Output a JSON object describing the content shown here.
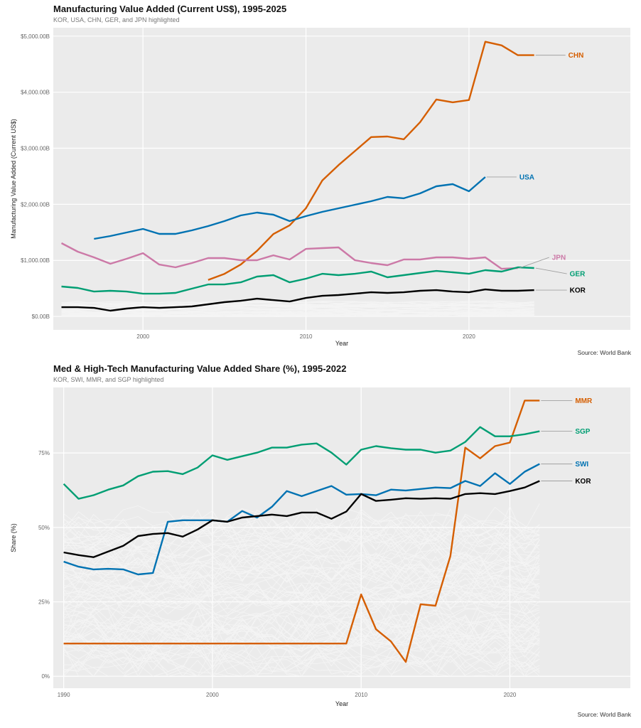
{
  "chart_data": [
    {
      "type": "line",
      "title": "Manufacturing Value Added (Current US$), 1995-2025",
      "subtitle": "KOR, USA, CHN, GER, and JPN highlighted",
      "xlabel": "Year",
      "ylabel": "Manufacturing Value Added (Current US$)",
      "caption": "Source: World Bank",
      "xlim": [
        1994.5,
        2029.9
      ],
      "ylim": [
        -240,
        5150
      ],
      "x_ticks": [
        2000,
        2010,
        2020
      ],
      "x_tick_labels": [
        "2000",
        "2010",
        "2020"
      ],
      "y_ticks": [
        0,
        1000,
        2000,
        3000,
        4000,
        5000
      ],
      "y_tick_labels": [
        "$0.00B",
        "$1,000.00B",
        "$2,000.00B",
        "$3,000.00B",
        "$4,000.00B",
        "$5,000.00B"
      ],
      "y_unit": "billions USD",
      "grid": true,
      "legend": "direct labels at line ends (right)",
      "background_series_note": "other countries drawn as faint light-gray lines near the bottom",
      "series": [
        {
          "name": "CHN",
          "color": "#D55E00",
          "x": [
            2004,
            2005,
            2006,
            2007,
            2008,
            2009,
            2010,
            2011,
            2012,
            2013,
            2014,
            2015,
            2016,
            2017,
            2018,
            2019,
            2020,
            2021,
            2022,
            2023,
            2024
          ],
          "values": [
            650,
            760,
            925,
            1170,
            1470,
            1625,
            1930,
            2425,
            2700,
            2950,
            3200,
            3210,
            3160,
            3465,
            3870,
            3820,
            3860,
            4900,
            4835,
            4660,
            4660
          ]
        },
        {
          "name": "USA",
          "color": "#0072B2",
          "x": [
            1997,
            1998,
            1999,
            2000,
            2001,
            2002,
            2003,
            2004,
            2005,
            2006,
            2007,
            2008,
            2009,
            2010,
            2011,
            2012,
            2013,
            2014,
            2015,
            2016,
            2017,
            2018,
            2019,
            2020,
            2021
          ],
          "values": [
            1383,
            1434,
            1497,
            1561,
            1472,
            1472,
            1535,
            1612,
            1700,
            1802,
            1853,
            1815,
            1700,
            1789,
            1865,
            1929,
            1992,
            2056,
            2132,
            2107,
            2195,
            2322,
            2360,
            2233,
            2487
          ]
        },
        {
          "name": "JPN",
          "color": "#CC79A7",
          "x": [
            1995,
            1996,
            1997,
            1998,
            1999,
            2000,
            2001,
            2002,
            2003,
            2004,
            2005,
            2006,
            2007,
            2008,
            2009,
            2010,
            2011,
            2012,
            2013,
            2014,
            2015,
            2016,
            2017,
            2018,
            2019,
            2020,
            2021,
            2022,
            2023
          ],
          "values": [
            1307,
            1155,
            1053,
            939,
            1028,
            1129,
            926,
            876,
            952,
            1041,
            1041,
            1003,
            1003,
            1091,
            1015,
            1205,
            1218,
            1231,
            1003,
            952,
            914,
            1015,
            1015,
            1053,
            1053,
            1028,
            1053,
            850,
            863
          ]
        },
        {
          "name": "GER",
          "color": "#009E73",
          "x": [
            1995,
            1996,
            1997,
            1998,
            1999,
            2000,
            2001,
            2002,
            2003,
            2004,
            2005,
            2006,
            2007,
            2008,
            2009,
            2010,
            2011,
            2012,
            2013,
            2014,
            2015,
            2016,
            2017,
            2018,
            2019,
            2020,
            2021,
            2022,
            2023,
            2024
          ],
          "values": [
            533,
            508,
            444,
            457,
            444,
            406,
            406,
            419,
            495,
            571,
            571,
            609,
            711,
            736,
            609,
            673,
            761,
            736,
            761,
            800,
            698,
            736,
            774,
            812,
            787,
            761,
            825,
            800,
            876,
            863
          ]
        },
        {
          "name": "KOR",
          "color": "#000000",
          "x": [
            1995,
            1996,
            1997,
            1998,
            1999,
            2000,
            2001,
            2002,
            2003,
            2004,
            2005,
            2006,
            2007,
            2008,
            2009,
            2010,
            2011,
            2012,
            2013,
            2014,
            2015,
            2016,
            2017,
            2018,
            2019,
            2020,
            2021,
            2022,
            2023,
            2024
          ],
          "values": [
            165,
            165,
            152,
            102,
            140,
            165,
            152,
            165,
            178,
            216,
            254,
            279,
            317,
            292,
            266,
            330,
            368,
            381,
            406,
            431,
            419,
            431,
            457,
            469,
            444,
            431,
            482,
            457,
            457,
            469
          ]
        }
      ]
    },
    {
      "type": "line",
      "title": "Med & High-Tech Manufacturing Value Added Share (%), 1995-2022",
      "subtitle": "KOR, SWI, MMR, and SGP highlighted",
      "xlabel": "Year",
      "ylabel": "Share (%)",
      "caption": "Source: World Bank",
      "xlim": [
        1989.3,
        2028.1
      ],
      "ylim": [
        -4,
        97
      ],
      "x_ticks": [
        1990,
        2000,
        2010,
        2020
      ],
      "x_tick_labels": [
        "1990",
        "2000",
        "2010",
        "2020"
      ],
      "y_ticks": [
        0,
        25,
        50,
        75
      ],
      "y_tick_labels": [
        "0%",
        "25%",
        "50%",
        "75%"
      ],
      "grid": true,
      "legend": "direct labels at line ends (right)",
      "background_series_note": "other countries drawn as faint light-gray lines below ~55%",
      "series": [
        {
          "name": "MMR",
          "color": "#D55E00",
          "x": [
            1990,
            1991,
            1992,
            1993,
            1994,
            1995,
            1996,
            1997,
            1998,
            1999,
            2000,
            2001,
            2002,
            2003,
            2004,
            2005,
            2006,
            2007,
            2008,
            2009,
            2010,
            2011,
            2012,
            2013,
            2014,
            2015,
            2016,
            2017,
            2018,
            2019,
            2020,
            2021,
            2022
          ],
          "values": [
            11.0,
            11.0,
            11.0,
            11.0,
            11.0,
            11.0,
            11.0,
            11.0,
            11.0,
            11.0,
            11.0,
            11.0,
            11.0,
            11.0,
            11.0,
            11.0,
            11.0,
            11.0,
            11.0,
            11.0,
            27.5,
            15.8,
            11.7,
            4.8,
            24.2,
            23.7,
            40.4,
            76.8,
            73.2,
            77.3,
            78.5,
            92.6,
            92.6
          ]
        },
        {
          "name": "SGP",
          "color": "#009E73",
          "x": [
            1990,
            1991,
            1992,
            1993,
            1994,
            1995,
            1996,
            1997,
            1998,
            1999,
            2000,
            2001,
            2002,
            2003,
            2004,
            2005,
            2006,
            2007,
            2008,
            2009,
            2010,
            2011,
            2012,
            2013,
            2014,
            2015,
            2016,
            2017,
            2018,
            2019,
            2020,
            2021,
            2022
          ],
          "values": [
            64.6,
            59.6,
            60.8,
            62.7,
            64.1,
            67.2,
            68.7,
            68.9,
            67.9,
            70.1,
            74.2,
            72.7,
            73.9,
            75.1,
            76.8,
            76.8,
            77.8,
            78.2,
            75.1,
            71.1,
            76.1,
            77.3,
            76.6,
            76.1,
            76.1,
            75.1,
            75.8,
            78.7,
            83.7,
            80.6,
            80.6,
            81.3,
            82.3
          ]
        },
        {
          "name": "SWI",
          "color": "#0072B2",
          "x": [
            1990,
            1991,
            1992,
            1993,
            1994,
            1995,
            1996,
            1997,
            1998,
            1999,
            2000,
            2001,
            2002,
            2003,
            2004,
            2005,
            2006,
            2007,
            2008,
            2009,
            2010,
            2011,
            2012,
            2013,
            2014,
            2015,
            2016,
            2017,
            2018,
            2019,
            2020,
            2021,
            2022
          ],
          "values": [
            38.5,
            36.8,
            35.9,
            36.1,
            35.9,
            34.2,
            34.7,
            51.9,
            52.4,
            52.4,
            52.4,
            51.9,
            55.5,
            53.3,
            56.9,
            62.2,
            60.5,
            62.2,
            63.9,
            61.0,
            61.2,
            60.8,
            62.7,
            62.4,
            62.9,
            63.4,
            63.2,
            65.6,
            63.9,
            68.2,
            64.6,
            68.7,
            71.3
          ]
        },
        {
          "name": "KOR",
          "color": "#000000",
          "x": [
            1990,
            1991,
            1992,
            1993,
            1994,
            1995,
            1996,
            1997,
            1998,
            1999,
            2000,
            2001,
            2002,
            2003,
            2004,
            2005,
            2006,
            2007,
            2008,
            2009,
            2010,
            2011,
            2012,
            2013,
            2014,
            2015,
            2016,
            2017,
            2018,
            2019,
            2020,
            2021,
            2022
          ],
          "values": [
            41.6,
            40.7,
            40.0,
            41.9,
            43.8,
            47.1,
            47.8,
            48.1,
            46.9,
            49.3,
            52.4,
            51.9,
            53.3,
            53.8,
            54.3,
            53.8,
            55.0,
            55.0,
            52.9,
            55.3,
            61.2,
            58.9,
            59.3,
            59.8,
            59.6,
            59.8,
            59.6,
            61.2,
            61.5,
            61.2,
            62.2,
            63.4,
            65.6
          ]
        }
      ]
    }
  ],
  "colors": {
    "panel_bg": "#EBEBEB",
    "grid": "#FFFFFF",
    "label_connector": "#A0A0A0",
    "background_lines": "#F7F7F7"
  }
}
